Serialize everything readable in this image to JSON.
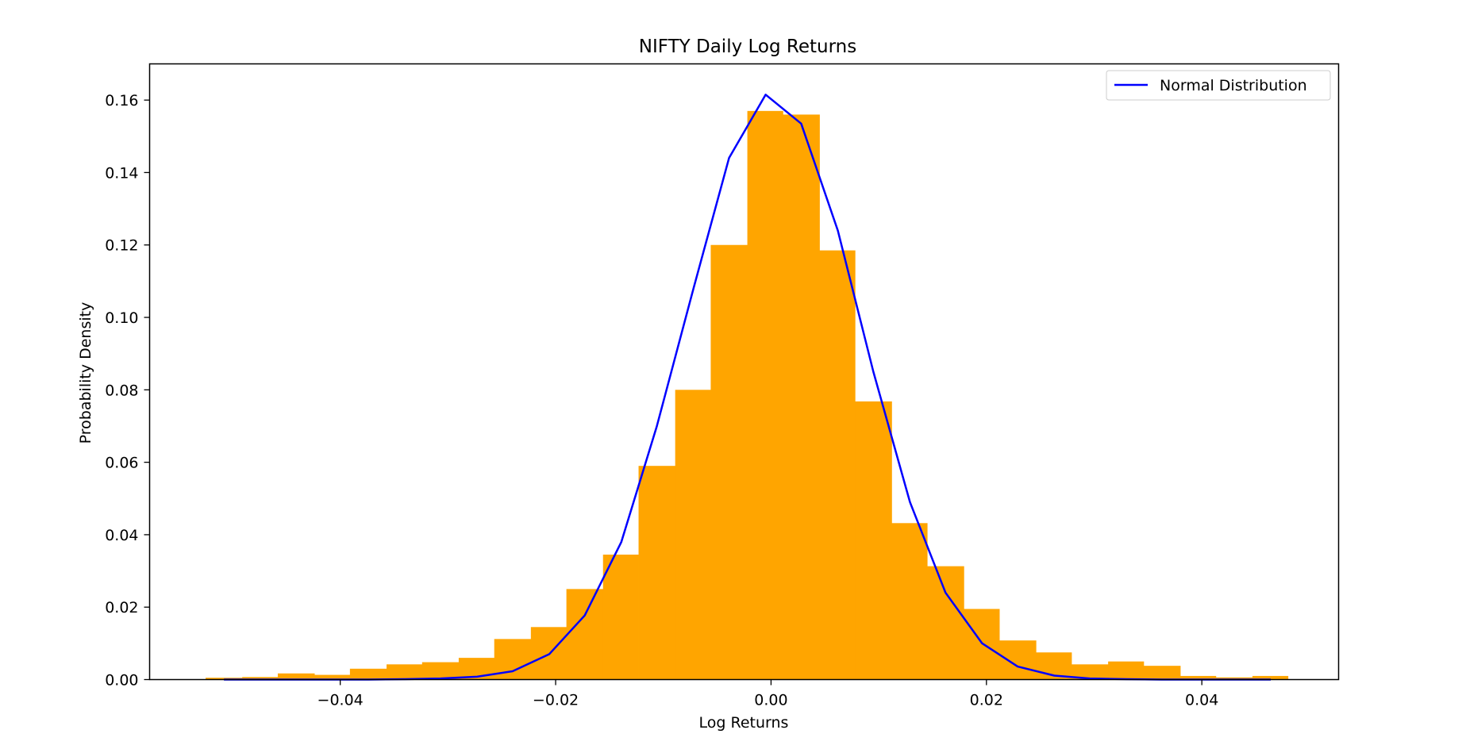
{
  "chart_data": {
    "type": "bar",
    "title": "NIFTY Daily Log Returns",
    "xlabel": "Log Returns",
    "ylabel": "Probability Density",
    "xlim": [
      -0.0577,
      0.0527
    ],
    "ylim": [
      0,
      0.17
    ],
    "xticks": [
      -0.04,
      -0.02,
      0.0,
      0.02,
      0.04
    ],
    "xtick_labels": [
      "−0.04",
      "−0.02",
      "0.00",
      "0.02",
      "0.04"
    ],
    "yticks": [
      0.0,
      0.02,
      0.04,
      0.06,
      0.08,
      0.1,
      0.12,
      0.14,
      0.16
    ],
    "ytick_labels": [
      "0.00",
      "0.02",
      "0.04",
      "0.06",
      "0.08",
      "0.10",
      "0.12",
      "0.14",
      "0.16"
    ],
    "grid": false,
    "legend_position": "top-right",
    "histogram": {
      "color": "#ffa500",
      "bin_edges": [
        -0.0525,
        -0.0491,
        -0.0458,
        -0.0424,
        -0.0391,
        -0.0357,
        -0.0324,
        -0.029,
        -0.0257,
        -0.0223,
        -0.019,
        -0.0156,
        -0.0123,
        -0.0089,
        -0.0056,
        -0.0022,
        0.0011,
        0.0045,
        0.0078,
        0.0112,
        0.0145,
        0.0179,
        0.0212,
        0.0246,
        0.0279,
        0.0313,
        0.0346,
        0.038,
        0.0413,
        0.0447,
        0.048
      ],
      "values": [
        0.0005,
        0.0007,
        0.0017,
        0.0013,
        0.003,
        0.0042,
        0.0048,
        0.006,
        0.0112,
        0.0145,
        0.025,
        0.0345,
        0.059,
        0.08,
        0.12,
        0.157,
        0.156,
        0.1185,
        0.0768,
        0.0432,
        0.0313,
        0.0195,
        0.0108,
        0.0075,
        0.0042,
        0.005,
        0.0038,
        0.001,
        0.0006,
        0.001
      ]
    },
    "series": [
      {
        "name": "Normal Distribution",
        "color": "#0000ff",
        "x": [
          -0.0508,
          -0.0474,
          -0.0441,
          -0.0407,
          -0.0374,
          -0.034,
          -0.0307,
          -0.0273,
          -0.024,
          -0.0206,
          -0.0173,
          -0.0139,
          -0.0106,
          -0.0072,
          -0.0039,
          -0.0005,
          0.0028,
          0.0062,
          0.0095,
          0.0129,
          0.0162,
          0.0196,
          0.0229,
          0.0263,
          0.0296,
          0.033,
          0.0363,
          0.0397,
          0.043,
          0.0464
        ],
        "y": [
          0.0,
          0.0,
          0.0,
          0.0,
          0.0,
          0.0001,
          0.0003,
          0.0008,
          0.0023,
          0.007,
          0.0177,
          0.038,
          0.07,
          0.108,
          0.144,
          0.1615,
          0.1535,
          0.124,
          0.085,
          0.049,
          0.024,
          0.01,
          0.0036,
          0.0011,
          0.0003,
          0.0001,
          0.0,
          0.0,
          0.0,
          0.0
        ]
      }
    ]
  }
}
